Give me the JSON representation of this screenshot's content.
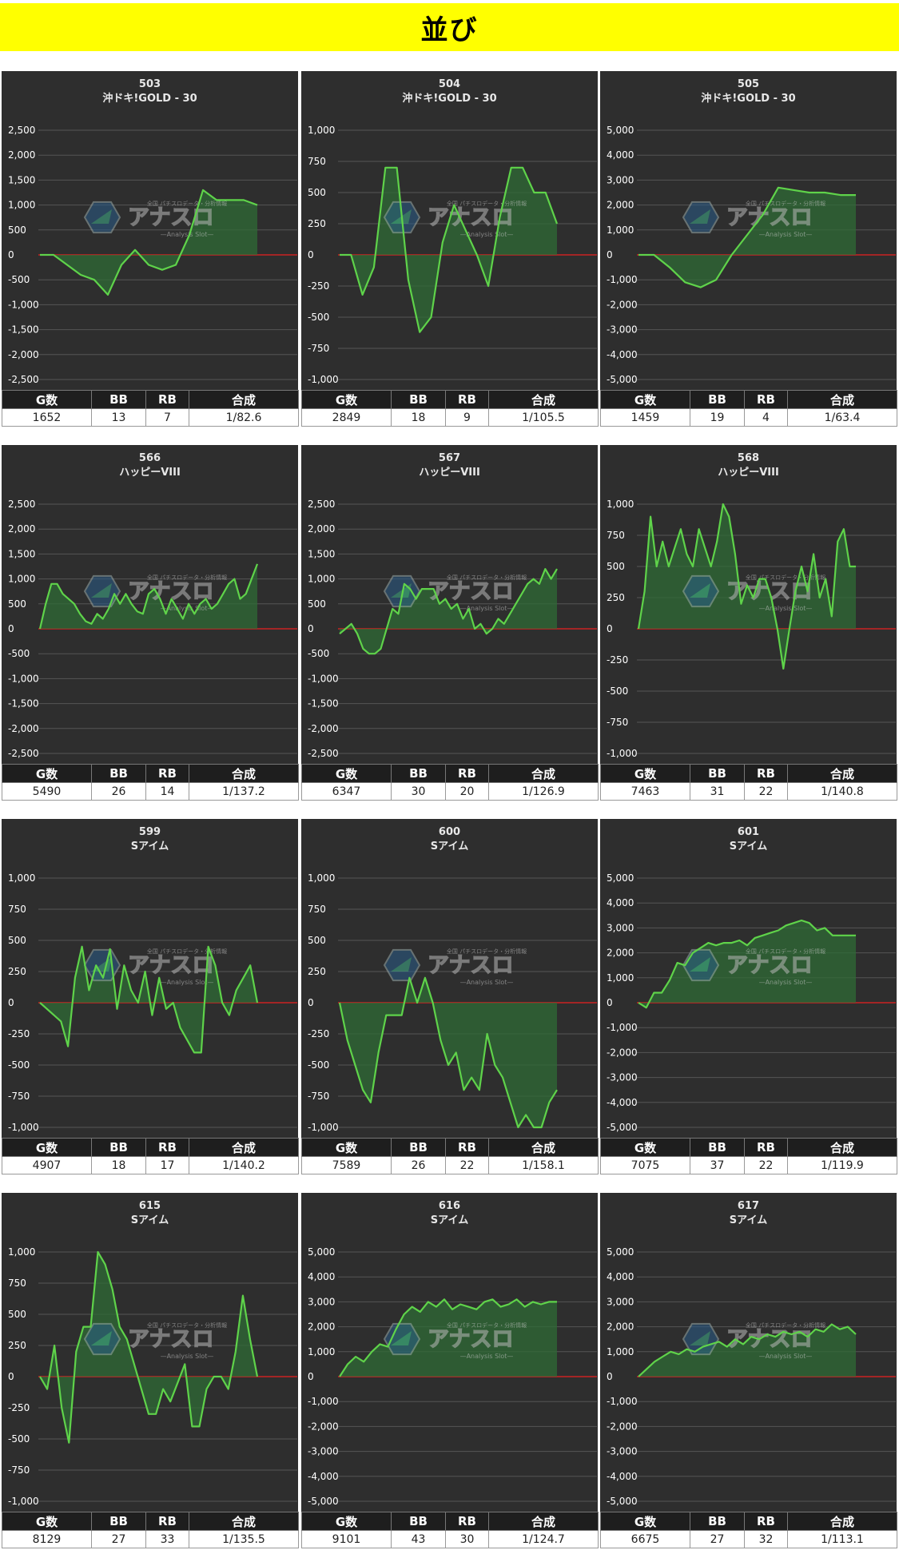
{
  "page_title": "並び",
  "watermark": {
    "name": "アナスロ",
    "sub": "—Analysis Slot—",
    "tag": "全国 パチスロデータ・分析情報"
  },
  "colors": {
    "background": "#2e2e2e",
    "grid": "#555555",
    "line": "#5fd34a",
    "fill": "#2f6b35",
    "zero_line": "#cc2222",
    "title_bar": "#ffff00"
  },
  "stat_headers": {
    "games": "G数",
    "bb": "BB",
    "rb": "RB",
    "combined": "合成"
  },
  "chart_data": [
    {
      "type": "area",
      "title": "503",
      "subtitle": "沖ドキ!GOLD - 30",
      "ylim": [
        -2500,
        2500
      ],
      "yticks": [
        2500,
        2000,
        1500,
        1000,
        500,
        0,
        -500,
        -1000,
        -1500,
        -2000,
        -2500
      ],
      "ytick_labels": [
        "2,500",
        "2,000",
        "1,500",
        "1,000",
        "500",
        "0",
        "-500",
        "-1,000",
        "-1,500",
        "-2,000",
        "-2,500"
      ],
      "values": [
        0,
        0,
        -200,
        -400,
        -500,
        -800,
        -200,
        100,
        -200,
        -300,
        -200,
        400,
        1300,
        1100,
        1100,
        1100,
        1000
      ],
      "stats": {
        "games": "1652",
        "bb": "13",
        "rb": "7",
        "combined": "1/82.6"
      }
    },
    {
      "type": "area",
      "title": "504",
      "subtitle": "沖ドキ!GOLD - 30",
      "ylim": [
        -1000,
        1000
      ],
      "yticks": [
        1000,
        750,
        500,
        250,
        0,
        -250,
        -500,
        -750,
        -1000
      ],
      "ytick_labels": [
        "1,000",
        "750",
        "500",
        "250",
        "0",
        "-250",
        "-500",
        "-750",
        "-1,000"
      ],
      "values": [
        0,
        0,
        -320,
        -100,
        700,
        700,
        -200,
        -620,
        -500,
        100,
        400,
        200,
        0,
        -250,
        300,
        700,
        700,
        500,
        500,
        250
      ],
      "stats": {
        "games": "2849",
        "bb": "18",
        "rb": "9",
        "combined": "1/105.5"
      }
    },
    {
      "type": "area",
      "title": "505",
      "subtitle": "沖ドキ!GOLD - 30",
      "ylim": [
        -5000,
        5000
      ],
      "yticks": [
        5000,
        4000,
        3000,
        2000,
        1000,
        0,
        -1000,
        -2000,
        -3000,
        -4000,
        -5000
      ],
      "ytick_labels": [
        "5,000",
        "4,000",
        "3,000",
        "2,000",
        "1,000",
        "0",
        "-1,000",
        "-2,000",
        "-3,000",
        "-4,000",
        "-5,000"
      ],
      "values": [
        0,
        0,
        -500,
        -1100,
        -1300,
        -1000,
        0,
        800,
        1600,
        2700,
        2600,
        2500,
        2500,
        2400,
        2400
      ],
      "stats": {
        "games": "1459",
        "bb": "19",
        "rb": "4",
        "combined": "1/63.4"
      }
    },
    {
      "type": "area",
      "title": "566",
      "subtitle": "ハッピーVIII",
      "ylim": [
        -2500,
        2500
      ],
      "yticks": [
        2500,
        2000,
        1500,
        1000,
        500,
        0,
        -500,
        -1000,
        -1500,
        -2000,
        -2500
      ],
      "ytick_labels": [
        "2,500",
        "2,000",
        "1,500",
        "1,000",
        "500",
        "0",
        "-500",
        "-1,000",
        "-1,500",
        "-2,000",
        "-2,500"
      ],
      "values": [
        0,
        500,
        900,
        900,
        700,
        600,
        500,
        300,
        150,
        100,
        300,
        200,
        400,
        700,
        500,
        700,
        500,
        350,
        300,
        700,
        800,
        600,
        300,
        600,
        400,
        200,
        500,
        300,
        500,
        600,
        400,
        500,
        700,
        900,
        1000,
        600,
        700,
        1000,
        1300
      ],
      "stats": {
        "games": "5490",
        "bb": "26",
        "rb": "14",
        "combined": "1/137.2"
      }
    },
    {
      "type": "area",
      "title": "567",
      "subtitle": "ハッピーVIII",
      "ylim": [
        -2500,
        2500
      ],
      "yticks": [
        2500,
        2000,
        1500,
        1000,
        500,
        0,
        -500,
        -1000,
        -1500,
        -2000,
        -2500
      ],
      "ytick_labels": [
        "2,500",
        "2,000",
        "1,500",
        "1,000",
        "500",
        "0",
        "-500",
        "-1,000",
        "-1,500",
        "-2,000",
        "-2,500"
      ],
      "values": [
        -100,
        0,
        100,
        -100,
        -400,
        -500,
        -500,
        -400,
        0,
        400,
        300,
        900,
        800,
        600,
        800,
        800,
        800,
        500,
        600,
        400,
        500,
        200,
        400,
        0,
        100,
        -100,
        0,
        200,
        100,
        300,
        500,
        700,
        900,
        1000,
        900,
        1200,
        1000,
        1200
      ],
      "stats": {
        "games": "6347",
        "bb": "30",
        "rb": "20",
        "combined": "1/126.9"
      }
    },
    {
      "type": "area",
      "title": "568",
      "subtitle": "ハッピーVIII",
      "ylim": [
        -1000,
        1000
      ],
      "yticks": [
        1000,
        750,
        500,
        250,
        0,
        -250,
        -500,
        -750,
        -1000
      ],
      "ytick_labels": [
        "1,000",
        "750",
        "500",
        "250",
        "0",
        "-250",
        "-500",
        "-750",
        "-1,000"
      ],
      "values": [
        0,
        300,
        900,
        500,
        700,
        500,
        650,
        800,
        600,
        500,
        800,
        650,
        500,
        700,
        1000,
        900,
        600,
        200,
        350,
        250,
        400,
        400,
        250,
        0,
        -320,
        0,
        300,
        500,
        300,
        600,
        250,
        400,
        100,
        700,
        800,
        500,
        500
      ],
      "stats": {
        "games": "7463",
        "bb": "31",
        "rb": "22",
        "combined": "1/140.8"
      }
    },
    {
      "type": "area",
      "title": "599",
      "subtitle": "Sアイム",
      "ylim": [
        -1000,
        1000
      ],
      "yticks": [
        1000,
        750,
        500,
        250,
        0,
        -250,
        -500,
        -750,
        -1000
      ],
      "ytick_labels": [
        "1,000",
        "750",
        "500",
        "250",
        "0",
        "-250",
        "-500",
        "-750",
        "-1,000"
      ],
      "values": [
        0,
        -50,
        -100,
        -150,
        -350,
        200,
        450,
        100,
        300,
        200,
        430,
        -50,
        300,
        100,
        0,
        250,
        -100,
        200,
        -50,
        0,
        -200,
        -300,
        -400,
        -400,
        450,
        300,
        0,
        -100,
        100,
        200,
        300,
        0
      ],
      "stats": {
        "games": "4907",
        "bb": "18",
        "rb": "17",
        "combined": "1/140.2"
      }
    },
    {
      "type": "area",
      "title": "600",
      "subtitle": "Sアイム",
      "ylim": [
        -1000,
        1000
      ],
      "yticks": [
        1000,
        750,
        500,
        250,
        0,
        -250,
        -500,
        -750,
        -1000
      ],
      "ytick_labels": [
        "1,000",
        "750",
        "500",
        "250",
        "0",
        "-250",
        "-500",
        "-750",
        "-1,000"
      ],
      "values": [
        0,
        -300,
        -500,
        -700,
        -800,
        -400,
        -100,
        -100,
        -100,
        200,
        0,
        200,
        0,
        -300,
        -500,
        -400,
        -700,
        -600,
        -700,
        -250,
        -500,
        -600,
        -800,
        -1000,
        -900,
        -1000,
        -1000,
        -800,
        -700
      ],
      "stats": {
        "games": "7589",
        "bb": "26",
        "rb": "22",
        "combined": "1/158.1"
      }
    },
    {
      "type": "area",
      "title": "601",
      "subtitle": "Sアイム",
      "ylim": [
        -5000,
        5000
      ],
      "yticks": [
        5000,
        4000,
        3000,
        2000,
        1000,
        0,
        -1000,
        -2000,
        -3000,
        -4000,
        -5000
      ],
      "ytick_labels": [
        "5,000",
        "4,000",
        "3,000",
        "2,000",
        "1,000",
        "0",
        "-1,000",
        "-2,000",
        "-3,000",
        "-4,000",
        "-5,000"
      ],
      "values": [
        0,
        -200,
        400,
        400,
        900,
        1600,
        1500,
        2000,
        2200,
        2400,
        2300,
        2400,
        2400,
        2500,
        2300,
        2600,
        2700,
        2800,
        2900,
        3100,
        3200,
        3300,
        3200,
        2900,
        3000,
        2700,
        2700,
        2700,
        2700
      ],
      "stats": {
        "games": "7075",
        "bb": "37",
        "rb": "22",
        "combined": "1/119.9"
      }
    },
    {
      "type": "area",
      "title": "615",
      "subtitle": "Sアイム",
      "ylim": [
        -1000,
        1000
      ],
      "yticks": [
        1000,
        750,
        500,
        250,
        0,
        -250,
        -500,
        -750,
        -1000
      ],
      "ytick_labels": [
        "1,000",
        "750",
        "500",
        "250",
        "0",
        "-250",
        "-500",
        "-750",
        "-1,000"
      ],
      "values": [
        0,
        -100,
        250,
        -250,
        -530,
        200,
        400,
        400,
        1000,
        900,
        700,
        400,
        300,
        100,
        -100,
        -300,
        -300,
        -100,
        -200,
        -50,
        100,
        -400,
        -400,
        -100,
        0,
        0,
        -100,
        200,
        650,
        300,
        0
      ],
      "stats": {
        "games": "8129",
        "bb": "27",
        "rb": "33",
        "combined": "1/135.5"
      }
    },
    {
      "type": "area",
      "title": "616",
      "subtitle": "Sアイム",
      "ylim": [
        -5000,
        5000
      ],
      "yticks": [
        5000,
        4000,
        3000,
        2000,
        1000,
        0,
        -1000,
        -2000,
        -3000,
        -4000,
        -5000
      ],
      "ytick_labels": [
        "5,000",
        "4,000",
        "3,000",
        "2,000",
        "1,000",
        "0",
        "-1,000",
        "-2,000",
        "-3,000",
        "-4,000",
        "-5,000"
      ],
      "values": [
        0,
        500,
        800,
        600,
        1000,
        1300,
        1200,
        1900,
        2500,
        2800,
        2600,
        3000,
        2800,
        3100,
        2700,
        2900,
        2800,
        2700,
        3000,
        3100,
        2800,
        2900,
        3100,
        2800,
        3000,
        2900,
        3000,
        3000
      ],
      "stats": {
        "games": "9101",
        "bb": "43",
        "rb": "30",
        "combined": "1/124.7"
      }
    },
    {
      "type": "area",
      "title": "617",
      "subtitle": "Sアイム",
      "ylim": [
        -5000,
        5000
      ],
      "yticks": [
        5000,
        4000,
        3000,
        2000,
        1000,
        0,
        -1000,
        -2000,
        -3000,
        -4000,
        -5000
      ],
      "ytick_labels": [
        "5,000",
        "4,000",
        "3,000",
        "2,000",
        "1,000",
        "0",
        "-1,000",
        "-2,000",
        "-3,000",
        "-4,000",
        "-5,000"
      ],
      "values": [
        0,
        300,
        600,
        800,
        1000,
        900,
        1100,
        1000,
        1200,
        1300,
        1400,
        1200,
        1500,
        1300,
        1600,
        1500,
        1700,
        1600,
        1800,
        1700,
        1800,
        1600,
        1900,
        1800,
        2100,
        1900,
        2000,
        1700
      ],
      "stats": {
        "games": "6675",
        "bb": "27",
        "rb": "32",
        "combined": "1/113.1"
      }
    }
  ]
}
